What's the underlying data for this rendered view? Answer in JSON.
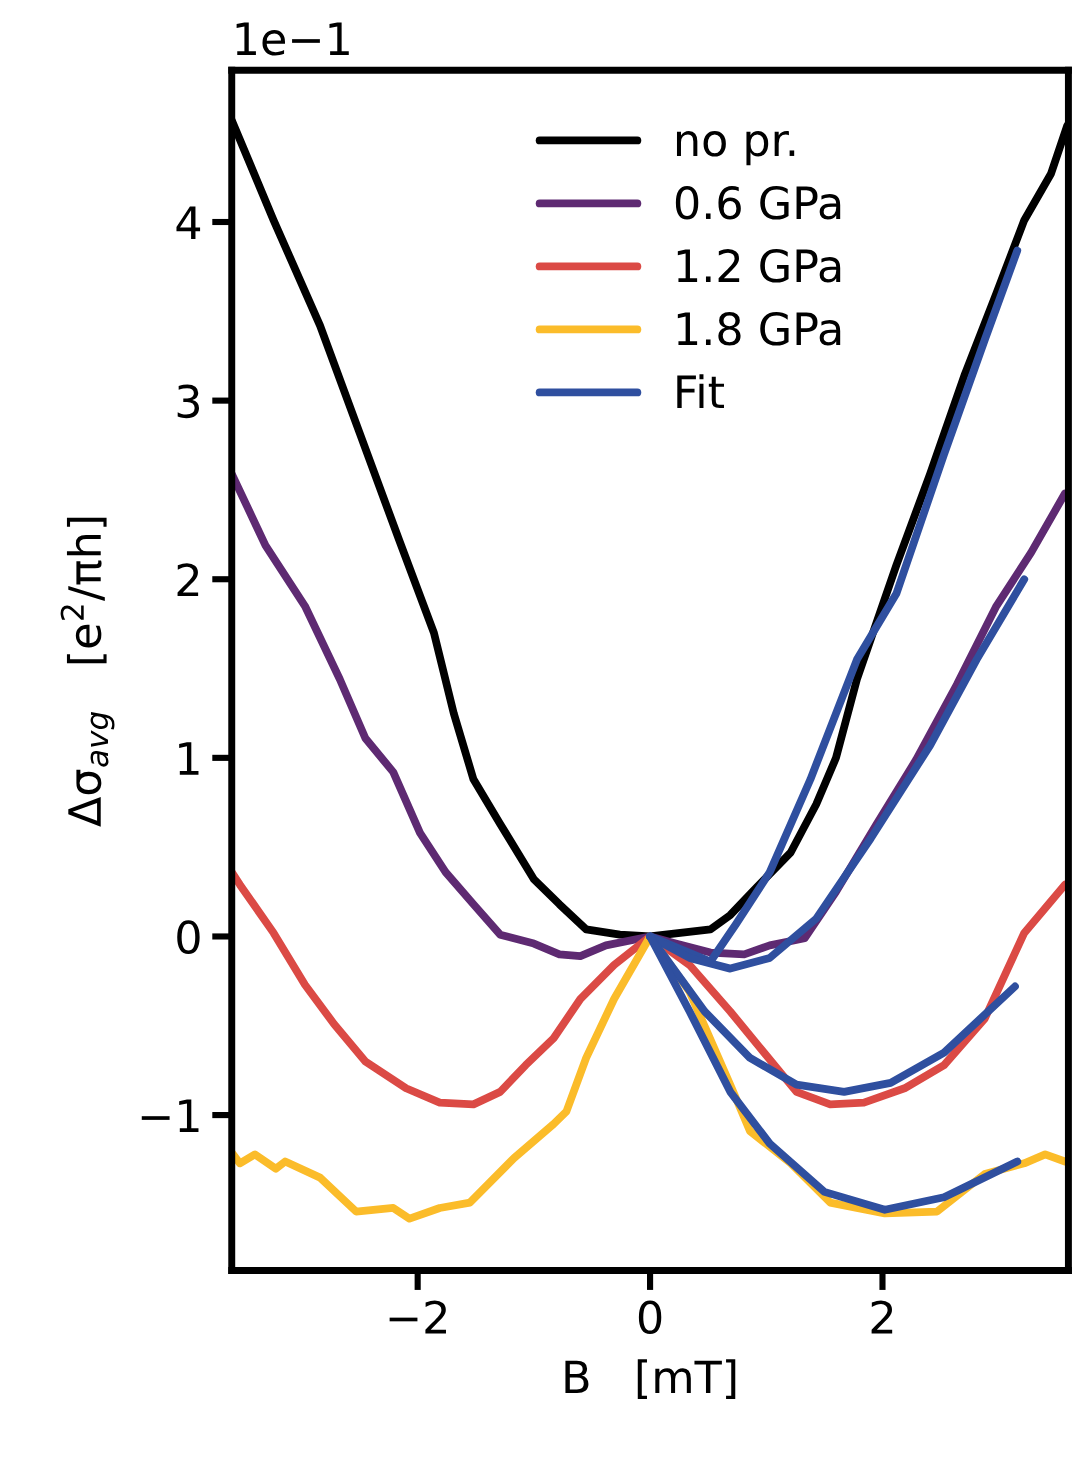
{
  "chart_data": {
    "type": "line",
    "xlabel": "B   [mT]",
    "ylabel": "Δσ$_{avg}$   [e$^{2}$/πh]",
    "annotations": [
      "1e−1"
    ],
    "xlim": [
      -3.6,
      3.6
    ],
    "ylim": [
      -1.87,
      4.85
    ],
    "xticks": [
      {
        "value": -2,
        "label": "−2"
      },
      0,
      2
    ],
    "yticks": [
      {
        "value": -1,
        "label": "−1"
      },
      0,
      1,
      2,
      3,
      4
    ],
    "grid": false,
    "legend": "top",
    "line_style": "solid",
    "marker": "none",
    "series": [
      {
        "name": "no pr.",
        "color": "#000000",
        "x": [
          -3.6,
          -3.24,
          -2.84,
          -2.5,
          -2.16,
          -1.86,
          -1.69,
          -1.52,
          -1.29,
          -1.0,
          -0.78,
          -0.55,
          -0.26,
          0,
          0.52,
          0.69,
          0.91,
          1.21,
          1.43,
          1.6,
          1.78,
          2.12,
          2.41,
          2.71,
          2.98,
          3.22,
          3.45,
          3.59
        ],
        "values": [
          4.57,
          4.01,
          3.42,
          2.82,
          2.22,
          1.7,
          1.25,
          0.88,
          0.63,
          0.32,
          0.18,
          0.04,
          0.01,
          0,
          0.04,
          0.12,
          0.27,
          0.47,
          0.74,
          1.0,
          1.44,
          2.08,
          2.59,
          3.15,
          3.6,
          4.01,
          4.27,
          4.54
        ]
      },
      {
        "name": "0.6 GPa",
        "color": "#5e2a72",
        "x": [
          -3.6,
          -3.31,
          -2.97,
          -2.67,
          -2.45,
          -2.21,
          -1.98,
          -1.76,
          -1.52,
          -1.29,
          -1.0,
          -0.78,
          -0.6,
          -0.38,
          0,
          0.22,
          0.52,
          0.81,
          1.03,
          1.33,
          1.6,
          1.95,
          2.29,
          2.64,
          2.98,
          3.28,
          3.57
        ],
        "values": [
          2.59,
          2.19,
          1.85,
          1.44,
          1.11,
          0.92,
          0.58,
          0.36,
          0.18,
          0.01,
          -0.04,
          -0.1,
          -0.11,
          -0.05,
          0,
          -0.04,
          -0.09,
          -0.1,
          -0.05,
          -0.01,
          0.25,
          0.63,
          0.99,
          1.41,
          1.85,
          2.15,
          2.48
        ]
      },
      {
        "name": "1.2 GPa",
        "color": "#db4a45",
        "x": [
          -3.6,
          -3.53,
          -3.24,
          -2.97,
          -2.72,
          -2.45,
          -2.1,
          -1.81,
          -1.52,
          -1.29,
          -1.07,
          -0.83,
          -0.6,
          -0.31,
          0,
          0.34,
          0.69,
          0.98,
          1.26,
          1.55,
          1.84,
          2.19,
          2.53,
          2.88,
          3.22,
          3.57
        ],
        "values": [
          0.36,
          0.29,
          0.02,
          -0.27,
          -0.49,
          -0.7,
          -0.85,
          -0.93,
          -0.94,
          -0.87,
          -0.72,
          -0.57,
          -0.35,
          -0.16,
          0,
          -0.16,
          -0.42,
          -0.65,
          -0.87,
          -0.94,
          -0.93,
          -0.85,
          -0.72,
          -0.46,
          0.02,
          0.29
        ]
      },
      {
        "name": "1.8 GPa",
        "color": "#fbbc2a",
        "x": [
          -3.6,
          -3.53,
          -3.4,
          -3.22,
          -3.14,
          -2.84,
          -2.53,
          -2.21,
          -2.07,
          -1.81,
          -1.55,
          -1.17,
          -0.83,
          -0.72,
          -0.55,
          -0.31,
          0,
          0.34,
          0.69,
          0.86,
          1.21,
          1.55,
          2.02,
          2.47,
          2.88,
          3.22,
          3.4,
          3.57
        ],
        "values": [
          -1.21,
          -1.27,
          -1.22,
          -1.3,
          -1.26,
          -1.35,
          -1.54,
          -1.52,
          -1.58,
          -1.52,
          -1.49,
          -1.24,
          -1.05,
          -0.98,
          -0.68,
          -0.35,
          0,
          -0.31,
          -0.83,
          -1.09,
          -1.27,
          -1.49,
          -1.55,
          -1.54,
          -1.33,
          -1.27,
          -1.22,
          -1.26
        ]
      },
      {
        "name": "Fit",
        "color": "#2f4f9f",
        "x": [
          0,
          0.52,
          0.74,
          1.03,
          1.38,
          1.78,
          2.12,
          2.53,
          2.88,
          3.16
        ],
        "values": [
          0,
          -0.14,
          0.07,
          0.36,
          0.88,
          1.55,
          1.92,
          2.7,
          3.34,
          3.84
        ]
      },
      {
        "color": "#2f4f9f",
        "x": [
          0,
          0.34,
          0.69,
          1.03,
          1.43,
          1.9,
          2.41,
          2.81,
          3.22
        ],
        "values": [
          0,
          -0.12,
          -0.18,
          -0.12,
          0.1,
          0.55,
          1.07,
          1.55,
          2.0
        ]
      },
      {
        "color": "#2f4f9f",
        "x": [
          0,
          0.47,
          0.86,
          1.26,
          1.67,
          2.07,
          2.53,
          3.14
        ],
        "values": [
          0,
          -0.42,
          -0.68,
          -0.83,
          -0.87,
          -0.82,
          -0.65,
          -0.28
        ]
      },
      {
        "color": "#2f4f9f",
        "x": [
          0,
          0.34,
          0.69,
          1.03,
          1.5,
          2.02,
          2.53,
          3.16
        ],
        "values": [
          0,
          -0.42,
          -0.87,
          -1.16,
          -1.43,
          -1.53,
          -1.46,
          -1.26
        ]
      }
    ]
  }
}
